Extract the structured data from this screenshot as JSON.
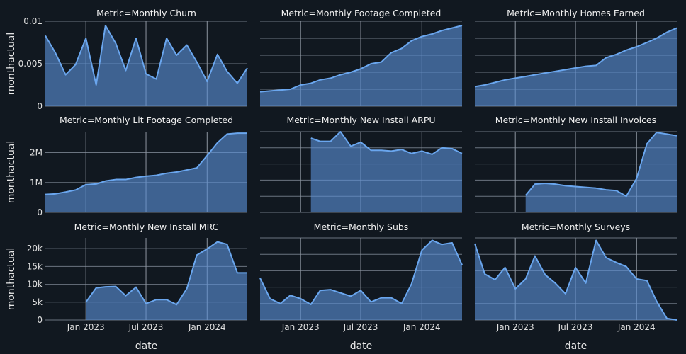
{
  "chart_data": {
    "type": "area",
    "layout": "facet-grid-3x3",
    "x_label": "date",
    "y_label": "monthactual",
    "x_axis": {
      "range": [
        "2022-09-01",
        "2024-05-01"
      ],
      "ticks": [
        {
          "date": "2023-01-01",
          "label": "Jan 2023"
        },
        {
          "date": "2023-07-01",
          "label": "Jul 2023"
        },
        {
          "date": "2024-01-01",
          "label": "Jan 2024"
        }
      ],
      "show_tick_labels_on_bottom_row_only": true
    },
    "color": "#6aa6ee",
    "facets": [
      {
        "title": "Metric=Monthly Churn",
        "ylim": [
          0,
          0.01
        ],
        "yticks": [
          0,
          0.005,
          0.01
        ],
        "ytick_labels": [
          "0",
          "0.005",
          "0.01"
        ],
        "show_y_labels": true,
        "x": [
          "2022-09-01",
          "2022-10-01",
          "2022-11-01",
          "2022-12-01",
          "2023-01-01",
          "2023-02-01",
          "2023-03-01",
          "2023-04-01",
          "2023-05-01",
          "2023-06-01",
          "2023-07-01",
          "2023-08-01",
          "2023-09-01",
          "2023-10-01",
          "2023-11-01",
          "2023-12-01",
          "2024-01-01",
          "2024-02-01",
          "2024-03-01",
          "2024-04-01",
          "2024-05-01"
        ],
        "y": [
          0.0083,
          0.0063,
          0.0037,
          0.0049,
          0.008,
          0.0025,
          0.0095,
          0.0074,
          0.0042,
          0.008,
          0.0038,
          0.0032,
          0.008,
          0.006,
          0.0072,
          0.0052,
          0.0029,
          0.0061,
          0.0041,
          0.0027,
          0.0045
        ]
      },
      {
        "title": "Metric=Monthly Footage Completed",
        "ylim": [
          0,
          1
        ],
        "yticks": [
          0,
          0.2,
          0.4,
          0.6,
          0.8,
          1.0
        ],
        "ytick_labels": [
          "",
          "",
          "",
          "",
          "",
          ""
        ],
        "show_y_labels": false,
        "x": [
          "2022-09-01",
          "2022-10-01",
          "2022-11-01",
          "2022-12-01",
          "2023-01-01",
          "2023-02-01",
          "2023-03-01",
          "2023-04-01",
          "2023-05-01",
          "2023-06-01",
          "2023-07-01",
          "2023-08-01",
          "2023-09-01",
          "2023-10-01",
          "2023-11-01",
          "2023-12-01",
          "2024-01-01",
          "2024-02-01",
          "2024-03-01",
          "2024-04-01",
          "2024-05-01"
        ],
        "y": [
          0.17,
          0.18,
          0.19,
          0.2,
          0.25,
          0.27,
          0.31,
          0.33,
          0.37,
          0.4,
          0.44,
          0.5,
          0.52,
          0.63,
          0.68,
          0.77,
          0.82,
          0.85,
          0.89,
          0.92,
          0.95
        ]
      },
      {
        "title": "Metric=Monthly Homes Earned",
        "ylim": [
          0,
          1
        ],
        "yticks": [
          0,
          0.2,
          0.4,
          0.6,
          0.8,
          1.0
        ],
        "ytick_labels": [
          "",
          "",
          "",
          "",
          "",
          ""
        ],
        "show_y_labels": false,
        "x": [
          "2022-09-01",
          "2022-10-01",
          "2022-11-01",
          "2022-12-01",
          "2023-01-01",
          "2023-02-01",
          "2023-03-01",
          "2023-04-01",
          "2023-05-01",
          "2023-06-01",
          "2023-07-01",
          "2023-08-01",
          "2023-09-01",
          "2023-10-01",
          "2023-11-01",
          "2023-12-01",
          "2024-01-01",
          "2024-02-01",
          "2024-03-01",
          "2024-04-01",
          "2024-05-01"
        ],
        "y": [
          0.23,
          0.25,
          0.28,
          0.31,
          0.33,
          0.35,
          0.37,
          0.39,
          0.41,
          0.43,
          0.45,
          0.47,
          0.48,
          0.57,
          0.61,
          0.66,
          0.7,
          0.75,
          0.8,
          0.87,
          0.92
        ]
      },
      {
        "title": "Metric=Monthly Lit Footage Completed",
        "ylim": [
          0,
          2700000
        ],
        "yticks": [
          0,
          1000000,
          2000000
        ],
        "ytick_labels": [
          "0",
          "1M",
          "2M"
        ],
        "show_y_labels": true,
        "x": [
          "2022-09-01",
          "2022-10-01",
          "2022-11-01",
          "2022-12-01",
          "2023-01-01",
          "2023-02-01",
          "2023-03-01",
          "2023-04-01",
          "2023-05-01",
          "2023-06-01",
          "2023-07-01",
          "2023-08-01",
          "2023-09-01",
          "2023-10-01",
          "2023-11-01",
          "2023-12-01",
          "2024-01-01",
          "2024-02-01",
          "2024-03-01",
          "2024-04-01",
          "2024-05-01"
        ],
        "y": [
          600000,
          620000,
          680000,
          750000,
          930000,
          950000,
          1050000,
          1100000,
          1100000,
          1170000,
          1210000,
          1240000,
          1310000,
          1350000,
          1420000,
          1490000,
          1900000,
          2330000,
          2620000,
          2650000,
          2650000
        ]
      },
      {
        "title": "Metric=Monthly New Install ARPU",
        "ylim": [
          0,
          1
        ],
        "yticks": [
          0,
          0.2,
          0.4,
          0.6,
          0.8,
          1.0
        ],
        "ytick_labels": [
          "",
          "",
          "",
          "",
          "",
          ""
        ],
        "show_y_labels": false,
        "x": [
          "2023-02-01",
          "2023-03-01",
          "2023-04-01",
          "2023-05-01",
          "2023-06-01",
          "2023-07-01",
          "2023-08-01",
          "2023-09-01",
          "2023-10-01",
          "2023-11-01",
          "2023-12-01",
          "2024-01-01",
          "2024-02-01",
          "2024-03-01",
          "2024-04-01",
          "2024-05-01"
        ],
        "y": [
          0.92,
          0.88,
          0.88,
          1.0,
          0.82,
          0.87,
          0.77,
          0.77,
          0.76,
          0.78,
          0.73,
          0.76,
          0.72,
          0.8,
          0.79,
          0.73
        ]
      },
      {
        "title": "Metric=Monthly New Install Invoices",
        "ylim": [
          0,
          1
        ],
        "yticks": [
          0,
          0.2,
          0.4,
          0.6,
          0.8,
          1.0
        ],
        "ytick_labels": [
          "",
          "",
          "",
          "",
          "",
          ""
        ],
        "show_y_labels": false,
        "x": [
          "2023-02-01",
          "2023-03-01",
          "2023-04-01",
          "2023-05-01",
          "2023-06-01",
          "2023-07-01",
          "2023-08-01",
          "2023-09-01",
          "2023-10-01",
          "2023-11-01",
          "2023-12-01",
          "2024-01-01",
          "2024-02-01",
          "2024-03-01",
          "2024-04-01",
          "2024-05-01"
        ],
        "y": [
          0.21,
          0.35,
          0.36,
          0.35,
          0.33,
          0.32,
          0.31,
          0.3,
          0.28,
          0.27,
          0.2,
          0.42,
          0.85,
          0.99,
          0.97,
          0.95
        ]
      },
      {
        "title": "Metric=Monthly New Install MRC",
        "ylim": [
          0,
          23000
        ],
        "yticks": [
          0,
          5000,
          10000,
          15000,
          20000
        ],
        "ytick_labels": [
          "0",
          "5k",
          "10k",
          "15k",
          "20k"
        ],
        "show_y_labels": true,
        "x": [
          "2023-01-01",
          "2023-02-01",
          "2023-03-01",
          "2023-04-01",
          "2023-05-01",
          "2023-06-01",
          "2023-07-01",
          "2023-08-01",
          "2023-09-01",
          "2023-10-01",
          "2023-11-01",
          "2023-12-01",
          "2024-01-01",
          "2024-02-01",
          "2024-03-01",
          "2024-04-01",
          "2024-05-01"
        ],
        "y": [
          5000,
          9000,
          9300,
          9400,
          6800,
          9200,
          4600,
          5700,
          5700,
          4300,
          8800,
          18200,
          19900,
          21900,
          21200,
          13200,
          13200
        ]
      },
      {
        "title": "Metric=Monthly Subs",
        "ylim": [
          0,
          1
        ],
        "yticks": [
          0,
          0.2,
          0.4,
          0.6,
          0.8,
          1.0
        ],
        "ytick_labels": [
          "",
          "",
          "",
          "",
          "",
          ""
        ],
        "show_y_labels": false,
        "x": [
          "2022-09-01",
          "2022-10-01",
          "2022-11-01",
          "2022-12-01",
          "2023-01-01",
          "2023-02-01",
          "2023-03-01",
          "2023-04-01",
          "2023-05-01",
          "2023-06-01",
          "2023-07-01",
          "2023-08-01",
          "2023-09-01",
          "2023-10-01",
          "2023-11-01",
          "2023-12-01",
          "2024-01-01",
          "2024-02-01",
          "2024-03-01",
          "2024-04-01",
          "2024-05-01"
        ],
        "y": [
          0.51,
          0.26,
          0.2,
          0.3,
          0.26,
          0.19,
          0.36,
          0.37,
          0.33,
          0.29,
          0.36,
          0.22,
          0.27,
          0.27,
          0.2,
          0.44,
          0.85,
          0.97,
          0.92,
          0.94,
          0.67
        ]
      },
      {
        "title": "Metric=Monthly Surveys",
        "ylim": [
          0,
          1
        ],
        "yticks": [
          0,
          0.2,
          0.4,
          0.6,
          0.8,
          1.0
        ],
        "ytick_labels": [
          "",
          "",
          "",
          "",
          "",
          ""
        ],
        "show_y_labels": false,
        "x": [
          "2022-09-01",
          "2022-10-01",
          "2022-11-01",
          "2022-12-01",
          "2023-01-01",
          "2023-02-01",
          "2023-03-01",
          "2023-04-01",
          "2023-05-01",
          "2023-06-01",
          "2023-07-01",
          "2023-08-01",
          "2023-09-01",
          "2023-10-01",
          "2023-11-01",
          "2023-12-01",
          "2024-01-01",
          "2024-02-01",
          "2024-03-01",
          "2024-04-01",
          "2024-05-01"
        ],
        "y": [
          0.93,
          0.56,
          0.49,
          0.64,
          0.38,
          0.5,
          0.78,
          0.55,
          0.45,
          0.32,
          0.64,
          0.45,
          0.97,
          0.76,
          0.7,
          0.65,
          0.5,
          0.48,
          0.23,
          0.02,
          0.0
        ]
      }
    ]
  }
}
